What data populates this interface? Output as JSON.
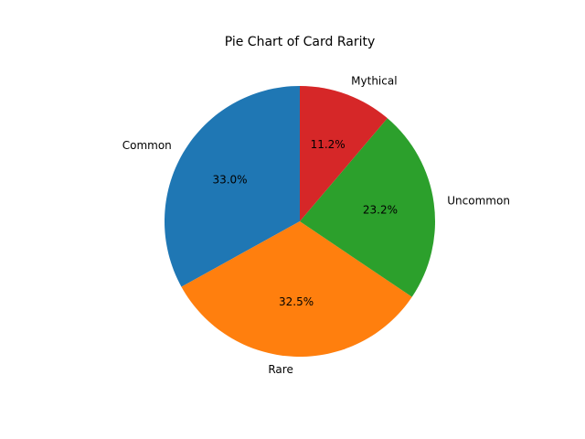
{
  "chart_data": {
    "type": "pie",
    "title": "Pie Chart of Card Rarity",
    "start_angle_deg": 90,
    "direction": "counterclockwise",
    "slices": [
      {
        "label": "Common",
        "value": 33.0,
        "pct_label": "33.0%",
        "color": "#1f77b4"
      },
      {
        "label": "Rare",
        "value": 32.5,
        "pct_label": "32.5%",
        "color": "#ff7f0e"
      },
      {
        "label": "Uncommon",
        "value": 23.2,
        "pct_label": "23.2%",
        "color": "#2ca02c"
      },
      {
        "label": "Mythical",
        "value": 11.2,
        "pct_label": "11.2%",
        "color": "#d62728"
      }
    ]
  }
}
